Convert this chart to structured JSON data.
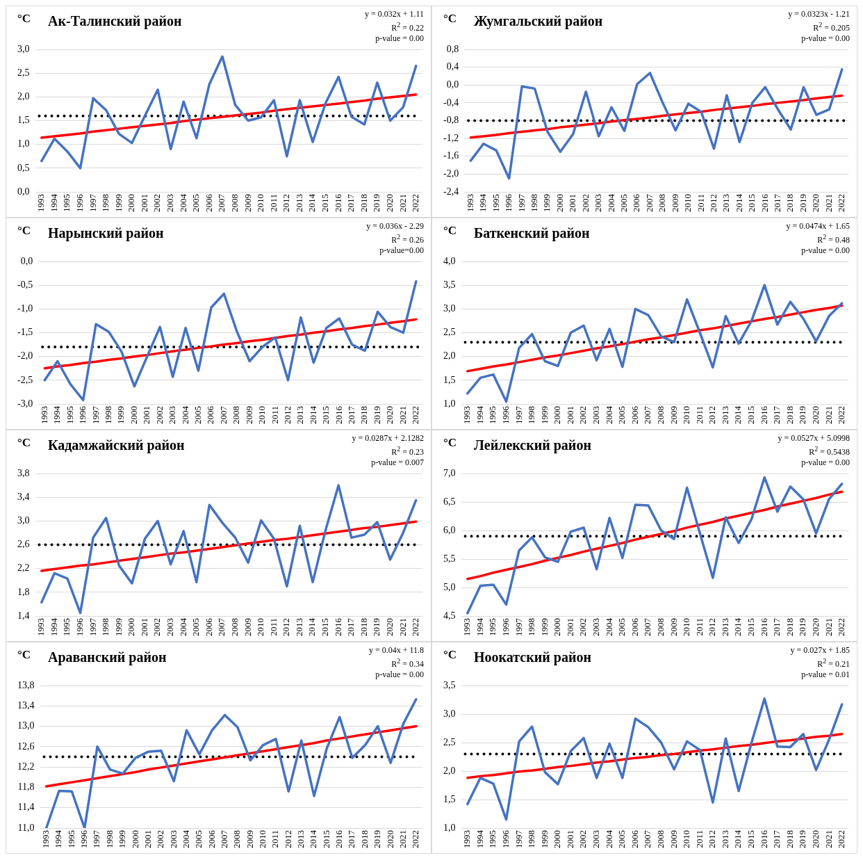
{
  "chart_data": [
    {
      "type": "line",
      "title": "Ак-Талинский район",
      "ylabel": "°C",
      "annotations": [
        "y = 0.032x + 1.11",
        "R$^{2}$ = 0.22",
        "p-value = 0.00"
      ],
      "x": [
        1993,
        1994,
        1995,
        1996,
        1997,
        1998,
        1999,
        2000,
        2001,
        2002,
        2003,
        2004,
        2005,
        2006,
        2007,
        2008,
        2009,
        2010,
        2011,
        2012,
        2013,
        2014,
        2015,
        2016,
        2017,
        2018,
        2019,
        2020,
        2021,
        2022
      ],
      "xlim": [
        1992.5,
        2022.5
      ],
      "xticks": [
        1993,
        1994,
        1995,
        1996,
        1997,
        1998,
        1999,
        2000,
        2001,
        2002,
        2003,
        2004,
        2005,
        2006,
        2007,
        2008,
        2009,
        2010,
        2011,
        2012,
        2013,
        2014,
        2015,
        2016,
        2017,
        2018,
        2019,
        2020,
        2021,
        2022
      ],
      "ylim": [
        0,
        3
      ],
      "yticks": [
        {
          "value": 0,
          "label": "0,0"
        },
        {
          "value": 0.5,
          "label": "0,5"
        },
        {
          "value": 1,
          "label": "1,0"
        },
        {
          "value": 1.5,
          "label": "1,5"
        },
        {
          "value": 2,
          "label": "2,0"
        },
        {
          "value": 2.5,
          "label": "2,5"
        },
        {
          "value": 3,
          "label": "3,0"
        }
      ],
      "grid": "y",
      "legend": false,
      "marker": "none",
      "line_style": "solid",
      "series": [
        {
          "color": "#4472c4",
          "values": [
            0.65,
            1.12,
            0.85,
            0.5,
            1.97,
            1.72,
            1.22,
            1.03,
            1.6,
            2.15,
            0.9,
            1.9,
            1.13,
            2.27,
            2.85,
            1.83,
            1.5,
            1.57,
            1.93,
            0.75,
            1.93,
            1.05,
            1.87,
            2.42,
            1.58,
            1.42,
            2.3,
            1.5,
            1.78,
            2.65
          ]
        },
        {
          "type": "line",
          "color": "#ff0000",
          "values": [
            1.14,
            1.17,
            1.2,
            1.23,
            1.27,
            1.3,
            1.33,
            1.36,
            1.39,
            1.42,
            1.45,
            1.49,
            1.52,
            1.55,
            1.58,
            1.61,
            1.64,
            1.67,
            1.71,
            1.74,
            1.77,
            1.8,
            1.83,
            1.86,
            1.89,
            1.92,
            1.96,
            1.99,
            2.02,
            2.05
          ]
        }
      ],
      "ref_lines": [
        {
          "axis": "y",
          "value": 1.6,
          "color": "#000000",
          "line_style": "dotted"
        }
      ]
    },
    {
      "type": "line",
      "title": "Жумгальский район",
      "ylabel": "°C",
      "annotations": [
        "y = 0.0323x - 1.21",
        "R$^{2}$ = 0.205",
        "p-value = 0.00"
      ],
      "x": [
        1993,
        1994,
        1995,
        1996,
        1997,
        1998,
        1999,
        2000,
        2001,
        2002,
        2003,
        2004,
        2005,
        2006,
        2007,
        2008,
        2009,
        2010,
        2011,
        2012,
        2013,
        2014,
        2015,
        2016,
        2017,
        2018,
        2019,
        2020,
        2021,
        2022
      ],
      "xlim": [
        1992.5,
        2022.5
      ],
      "xticks": [
        1993,
        1994,
        1995,
        1996,
        1997,
        1998,
        1999,
        2000,
        2001,
        2002,
        2003,
        2004,
        2005,
        2006,
        2007,
        2008,
        2009,
        2010,
        2011,
        2012,
        2013,
        2014,
        2015,
        2016,
        2017,
        2018,
        2019,
        2020,
        2021,
        2022
      ],
      "ylim": [
        -2.4,
        0.8
      ],
      "yticks": [
        {
          "value": -2.4,
          "label": "-2,4"
        },
        {
          "value": -2,
          "label": "-2,0"
        },
        {
          "value": -1.6,
          "label": "-1,6"
        },
        {
          "value": -1.2,
          "label": "-1,2"
        },
        {
          "value": -0.8,
          "label": "-0,8"
        },
        {
          "value": -0.4,
          "label": "-0,4"
        },
        {
          "value": 0,
          "label": "0,0"
        },
        {
          "value": 0.4,
          "label": "0,4"
        },
        {
          "value": 0.8,
          "label": "0,8"
        }
      ],
      "grid": "y",
      "legend": false,
      "marker": "none",
      "line_style": "solid",
      "series": [
        {
          "color": "#4472c4",
          "values": [
            -1.7,
            -1.32,
            -1.47,
            -2.1,
            -0.03,
            -0.08,
            -1.05,
            -1.5,
            -1.1,
            -0.15,
            -1.15,
            -0.5,
            -1.03,
            0.02,
            0.27,
            -0.4,
            -1.02,
            -0.42,
            -0.6,
            -1.43,
            -0.23,
            -1.28,
            -0.4,
            -0.05,
            -0.55,
            -1.0,
            -0.05,
            -0.67,
            -0.55,
            0.35
          ]
        },
        {
          "type": "line",
          "color": "#ff0000",
          "values": [
            -1.18,
            -1.15,
            -1.12,
            -1.08,
            -1.05,
            -1.02,
            -0.99,
            -0.95,
            -0.92,
            -0.89,
            -0.86,
            -0.82,
            -0.79,
            -0.76,
            -0.73,
            -0.69,
            -0.66,
            -0.63,
            -0.6,
            -0.56,
            -0.53,
            -0.5,
            -0.47,
            -0.43,
            -0.4,
            -0.37,
            -0.34,
            -0.3,
            -0.27,
            -0.24
          ]
        }
      ],
      "ref_lines": [
        {
          "axis": "y",
          "value": -0.8,
          "color": "#000000",
          "line_style": "dotted"
        }
      ]
    },
    {
      "type": "line",
      "title": "Нарынский район",
      "ylabel": "°C",
      "annotations": [
        "y = 0.036x - 2.29",
        "R$^{2}$ = 0.26",
        "p-value=0.00"
      ],
      "x": [
        1993,
        1994,
        1995,
        1996,
        1997,
        1998,
        1999,
        2000,
        2001,
        2002,
        2003,
        2004,
        2005,
        2006,
        2007,
        2008,
        2009,
        2010,
        2011,
        2012,
        2013,
        2014,
        2015,
        2016,
        2017,
        2018,
        2019,
        2020,
        2021,
        2022
      ],
      "xlim": [
        1992.5,
        2022.5
      ],
      "xticks": [
        1993,
        1994,
        1995,
        1996,
        1997,
        1998,
        1999,
        2000,
        2001,
        2002,
        2003,
        2004,
        2005,
        2006,
        2007,
        2008,
        2009,
        2010,
        2011,
        2012,
        2013,
        2014,
        2015,
        2016,
        2017,
        2018,
        2019,
        2020,
        2021,
        2022
      ],
      "ylim": [
        -3,
        0
      ],
      "yticks": [
        {
          "value": -3,
          "label": "-3,0"
        },
        {
          "value": -2.5,
          "label": "-2,5"
        },
        {
          "value": -2,
          "label": "-2,0"
        },
        {
          "value": -1.5,
          "label": "-1,5"
        },
        {
          "value": -1,
          "label": "-1,0"
        },
        {
          "value": -0.5,
          "label": "-0,5"
        },
        {
          "value": 0,
          "label": "0,0"
        }
      ],
      "grid": "y",
      "legend": false,
      "marker": "none",
      "line_style": "solid",
      "series": [
        {
          "color": "#4472c4",
          "values": [
            -2.5,
            -2.1,
            -2.58,
            -2.92,
            -1.32,
            -1.48,
            -1.9,
            -2.63,
            -2.0,
            -1.38,
            -2.43,
            -1.4,
            -2.3,
            -0.97,
            -0.68,
            -1.47,
            -2.1,
            -1.8,
            -1.6,
            -2.5,
            -1.18,
            -2.13,
            -1.4,
            -1.2,
            -1.75,
            -1.88,
            -1.06,
            -1.38,
            -1.5,
            -0.42
          ]
        },
        {
          "type": "line",
          "color": "#ff0000",
          "values": [
            -2.25,
            -2.21,
            -2.18,
            -2.14,
            -2.11,
            -2.07,
            -2.04,
            -2.0,
            -1.97,
            -1.93,
            -1.89,
            -1.86,
            -1.82,
            -1.79,
            -1.75,
            -1.72,
            -1.68,
            -1.65,
            -1.61,
            -1.57,
            -1.54,
            -1.5,
            -1.47,
            -1.43,
            -1.4,
            -1.36,
            -1.33,
            -1.29,
            -1.26,
            -1.22
          ]
        }
      ],
      "ref_lines": [
        {
          "axis": "y",
          "value": -1.8,
          "color": "#000000",
          "line_style": "dotted"
        }
      ]
    },
    {
      "type": "line",
      "title": "Баткенский район",
      "ylabel": "°C",
      "annotations": [
        "y = 0.0474x + 1.65",
        "R$^{2}$ = 0.48",
        "p-value = 0.00"
      ],
      "x": [
        1993,
        1994,
        1995,
        1996,
        1997,
        1998,
        1999,
        2000,
        2001,
        2002,
        2003,
        2004,
        2005,
        2006,
        2007,
        2008,
        2009,
        2010,
        2011,
        2012,
        2013,
        2014,
        2015,
        2016,
        2017,
        2018,
        2019,
        2020,
        2021,
        2022
      ],
      "xlim": [
        1992.5,
        2022.5
      ],
      "xticks": [
        1993,
        1994,
        1995,
        1996,
        1997,
        1998,
        1999,
        2000,
        2001,
        2002,
        2003,
        2004,
        2005,
        2006,
        2007,
        2008,
        2009,
        2010,
        2011,
        2012,
        2013,
        2014,
        2015,
        2016,
        2017,
        2018,
        2019,
        2020,
        2021,
        2022
      ],
      "ylim": [
        1,
        4
      ],
      "yticks": [
        {
          "value": 1,
          "label": "1,0"
        },
        {
          "value": 1.5,
          "label": "1,5"
        },
        {
          "value": 2,
          "label": "2,0"
        },
        {
          "value": 2.5,
          "label": "2,5"
        },
        {
          "value": 3,
          "label": "3,0"
        },
        {
          "value": 3.5,
          "label": "3,5"
        },
        {
          "value": 4,
          "label": "4,0"
        }
      ],
      "grid": "y",
      "legend": false,
      "marker": "none",
      "line_style": "solid",
      "series": [
        {
          "color": "#4472c4",
          "values": [
            1.22,
            1.55,
            1.62,
            1.05,
            2.18,
            2.47,
            1.9,
            1.8,
            2.5,
            2.65,
            1.92,
            2.58,
            1.78,
            3.0,
            2.87,
            2.42,
            2.3,
            3.2,
            2.5,
            1.77,
            2.85,
            2.27,
            2.75,
            3.5,
            2.67,
            3.15,
            2.8,
            2.32,
            2.85,
            3.12
          ]
        },
        {
          "type": "line",
          "color": "#ff0000",
          "values": [
            1.69,
            1.74,
            1.79,
            1.83,
            1.88,
            1.93,
            1.98,
            2.02,
            2.07,
            2.12,
            2.17,
            2.21,
            2.26,
            2.31,
            2.36,
            2.4,
            2.45,
            2.5,
            2.55,
            2.59,
            2.64,
            2.69,
            2.74,
            2.79,
            2.83,
            2.88,
            2.93,
            2.98,
            3.02,
            3.07
          ]
        }
      ],
      "ref_lines": [
        {
          "axis": "y",
          "value": 2.3,
          "color": "#000000",
          "line_style": "dotted"
        }
      ]
    },
    {
      "type": "line",
      "title": "Кадамжайский район",
      "ylabel": "°C",
      "annotations": [
        "y = 0.0287x + 2.1282",
        "R$^{2}$ = 0.23",
        "p-value = 0.007"
      ],
      "x": [
        1993,
        1994,
        1995,
        1996,
        1997,
        1998,
        1999,
        2000,
        2001,
        2002,
        2003,
        2004,
        2005,
        2006,
        2007,
        2008,
        2009,
        2010,
        2011,
        2012,
        2013,
        2014,
        2015,
        2016,
        2017,
        2018,
        2019,
        2020,
        2021,
        2022
      ],
      "xlim": [
        1992.5,
        2022.5
      ],
      "xticks": [
        1993,
        1994,
        1995,
        1996,
        1997,
        1998,
        1999,
        2000,
        2001,
        2002,
        2003,
        2004,
        2005,
        2006,
        2007,
        2008,
        2009,
        2010,
        2011,
        2012,
        2013,
        2014,
        2015,
        2016,
        2017,
        2018,
        2019,
        2020,
        2021,
        2022
      ],
      "ylim": [
        1.4,
        3.8
      ],
      "yticks": [
        {
          "value": 1.4,
          "label": "1,4"
        },
        {
          "value": 1.8,
          "label": "1,8"
        },
        {
          "value": 2.2,
          "label": "2,2"
        },
        {
          "value": 2.6,
          "label": "2,6"
        },
        {
          "value": 3,
          "label": "3,0"
        },
        {
          "value": 3.4,
          "label": "3,4"
        },
        {
          "value": 3.8,
          "label": "3,8"
        }
      ],
      "grid": "y",
      "legend": false,
      "marker": "none",
      "line_style": "solid",
      "series": [
        {
          "color": "#4472c4",
          "values": [
            1.63,
            2.12,
            2.03,
            1.45,
            2.72,
            3.05,
            2.25,
            1.95,
            2.7,
            3.0,
            2.27,
            2.83,
            1.97,
            3.27,
            2.97,
            2.72,
            2.3,
            3.01,
            2.7,
            1.9,
            2.92,
            1.97,
            2.85,
            3.6,
            2.72,
            2.77,
            2.98,
            2.35,
            2.8,
            3.35
          ]
        },
        {
          "type": "line",
          "color": "#ff0000",
          "values": [
            2.16,
            2.19,
            2.22,
            2.25,
            2.27,
            2.3,
            2.33,
            2.36,
            2.39,
            2.42,
            2.45,
            2.47,
            2.5,
            2.53,
            2.56,
            2.59,
            2.62,
            2.65,
            2.68,
            2.7,
            2.73,
            2.76,
            2.79,
            2.82,
            2.85,
            2.88,
            2.9,
            2.93,
            2.96,
            2.99
          ]
        }
      ],
      "ref_lines": [
        {
          "axis": "y",
          "value": 2.6,
          "color": "#000000",
          "line_style": "dotted"
        }
      ]
    },
    {
      "type": "line",
      "title": "Лейлекский район",
      "ylabel": "°C",
      "annotations": [
        "y = 0.0527x + 5.0998",
        "R$^{2}$ = 0.5438",
        "p-value = 0.00"
      ],
      "x": [
        1993,
        1994,
        1995,
        1996,
        1997,
        1998,
        1999,
        2000,
        2001,
        2002,
        2003,
        2004,
        2005,
        2006,
        2007,
        2008,
        2009,
        2010,
        2011,
        2012,
        2013,
        2014,
        2015,
        2016,
        2017,
        2018,
        2019,
        2020,
        2021,
        2022
      ],
      "xlim": [
        1992.5,
        2022.5
      ],
      "xticks": [
        1993,
        1994,
        1995,
        1996,
        1997,
        1998,
        1999,
        2000,
        2001,
        2002,
        2003,
        2004,
        2005,
        2006,
        2007,
        2008,
        2009,
        2010,
        2011,
        2012,
        2013,
        2014,
        2015,
        2016,
        2017,
        2018,
        2019,
        2020,
        2021,
        2022
      ],
      "ylim": [
        4.5,
        7
      ],
      "yticks": [
        {
          "value": 4.5,
          "label": "4,5"
        },
        {
          "value": 5,
          "label": "5,0"
        },
        {
          "value": 5.5,
          "label": "5,5"
        },
        {
          "value": 6,
          "label": "6,0"
        },
        {
          "value": 6.5,
          "label": "6,5"
        },
        {
          "value": 7,
          "label": "7,0"
        }
      ],
      "grid": "y",
      "legend": false,
      "marker": "none",
      "line_style": "solid",
      "series": [
        {
          "color": "#4472c4",
          "values": [
            4.55,
            5.03,
            5.05,
            4.7,
            5.65,
            5.88,
            5.53,
            5.45,
            5.98,
            6.05,
            5.32,
            6.22,
            5.52,
            6.45,
            6.44,
            6.0,
            5.85,
            6.75,
            5.95,
            5.17,
            6.23,
            5.78,
            6.2,
            6.93,
            6.33,
            6.77,
            6.55,
            5.95,
            6.55,
            6.82
          ]
        },
        {
          "type": "line",
          "color": "#ff0000",
          "values": [
            5.15,
            5.2,
            5.26,
            5.31,
            5.36,
            5.41,
            5.47,
            5.52,
            5.57,
            5.63,
            5.68,
            5.73,
            5.78,
            5.84,
            5.89,
            5.94,
            5.99,
            6.05,
            6.1,
            6.15,
            6.21,
            6.26,
            6.31,
            6.36,
            6.42,
            6.47,
            6.52,
            6.57,
            6.63,
            6.68
          ]
        }
      ],
      "ref_lines": [
        {
          "axis": "y",
          "value": 5.9,
          "color": "#000000",
          "line_style": "dotted"
        }
      ]
    },
    {
      "type": "line",
      "title": "Араванский район",
      "ylabel": "°C",
      "annotations": [
        "y = 0.04x + 11.8",
        "R$^{2}$ = 0.34",
        "p-value = 0.00"
      ],
      "x": [
        1993,
        1994,
        1995,
        1996,
        1997,
        1998,
        1999,
        2000,
        2001,
        2002,
        2003,
        2004,
        2005,
        2006,
        2007,
        2008,
        2009,
        2010,
        2011,
        2012,
        2013,
        2014,
        2015,
        2016,
        2017,
        2018,
        2019,
        2020,
        2021,
        2022
      ],
      "xlim": [
        1992.5,
        2022.5
      ],
      "xticks": [
        1993,
        1994,
        1995,
        1996,
        1997,
        1998,
        1999,
        2000,
        2001,
        2002,
        2003,
        2004,
        2005,
        2006,
        2007,
        2008,
        2009,
        2010,
        2011,
        2012,
        2013,
        2014,
        2015,
        2016,
        2017,
        2018,
        2019,
        2020,
        2021,
        2022
      ],
      "ylim": [
        11,
        13.8
      ],
      "yticks": [
        {
          "value": 11,
          "label": "11,0"
        },
        {
          "value": 11.4,
          "label": "11,4"
        },
        {
          "value": 11.8,
          "label": "11,8"
        },
        {
          "value": 12.2,
          "label": "12,2"
        },
        {
          "value": 12.6,
          "label": "12,6"
        },
        {
          "value": 13,
          "label": "13,0"
        },
        {
          "value": 13.4,
          "label": "13,4"
        },
        {
          "value": 13.8,
          "label": "13,8"
        }
      ],
      "grid": "y",
      "legend": false,
      "marker": "none",
      "line_style": "solid",
      "series": [
        {
          "color": "#4472c4",
          "values": [
            11.0,
            11.73,
            11.72,
            11.0,
            12.6,
            12.15,
            12.07,
            12.38,
            12.5,
            12.52,
            11.92,
            12.92,
            12.45,
            12.92,
            13.22,
            12.98,
            12.33,
            12.63,
            12.75,
            11.72,
            12.72,
            11.63,
            12.57,
            13.18,
            12.38,
            12.63,
            13.0,
            12.28,
            13.05,
            13.53
          ]
        },
        {
          "type": "line",
          "color": "#ff0000",
          "values": [
            11.82,
            11.86,
            11.9,
            11.94,
            11.98,
            12.02,
            12.06,
            12.1,
            12.15,
            12.19,
            12.23,
            12.27,
            12.31,
            12.35,
            12.39,
            12.43,
            12.47,
            12.51,
            12.55,
            12.59,
            12.63,
            12.67,
            12.72,
            12.76,
            12.8,
            12.84,
            12.88,
            12.92,
            12.96,
            13.0
          ]
        }
      ],
      "ref_lines": [
        {
          "axis": "y",
          "value": 12.4,
          "color": "#000000",
          "line_style": "dotted"
        }
      ]
    },
    {
      "type": "line",
      "title": "Ноокатский район",
      "ylabel": "°C",
      "annotations": [
        "y = 0.027x + 1.85",
        "R$^{2}$ = 0.21",
        "p-value = 0.01"
      ],
      "x": [
        1993,
        1994,
        1995,
        1996,
        1997,
        1998,
        1999,
        2000,
        2001,
        2002,
        2003,
        2004,
        2005,
        2006,
        2007,
        2008,
        2009,
        2010,
        2011,
        2012,
        2013,
        2014,
        2015,
        2016,
        2017,
        2018,
        2019,
        2020,
        2021,
        2022
      ],
      "xlim": [
        1992.5,
        2022.5
      ],
      "xticks": [
        1993,
        1994,
        1995,
        1996,
        1997,
        1998,
        1999,
        2000,
        2001,
        2002,
        2003,
        2004,
        2005,
        2006,
        2007,
        2008,
        2009,
        2010,
        2011,
        2012,
        2013,
        2014,
        2015,
        2016,
        2017,
        2018,
        2019,
        2020,
        2021,
        2022
      ],
      "ylim": [
        1,
        3.5
      ],
      "yticks": [
        {
          "value": 1,
          "label": "1,0"
        },
        {
          "value": 1.5,
          "label": "1,5"
        },
        {
          "value": 2,
          "label": "2,0"
        },
        {
          "value": 2.5,
          "label": "2,5"
        },
        {
          "value": 3,
          "label": "3,0"
        },
        {
          "value": 3.5,
          "label": "3,5"
        }
      ],
      "grid": "y",
      "legend": false,
      "marker": "none",
      "line_style": "solid",
      "series": [
        {
          "color": "#4472c4",
          "values": [
            1.42,
            1.88,
            1.78,
            1.15,
            2.52,
            2.78,
            1.98,
            1.77,
            2.35,
            2.58,
            1.88,
            2.48,
            1.88,
            2.92,
            2.77,
            2.5,
            2.03,
            2.52,
            2.37,
            1.45,
            2.57,
            1.65,
            2.5,
            3.27,
            2.43,
            2.42,
            2.65,
            2.02,
            2.55,
            3.17
          ]
        },
        {
          "type": "line",
          "color": "#ff0000",
          "values": [
            1.88,
            1.91,
            1.93,
            1.96,
            1.99,
            2.01,
            2.04,
            2.07,
            2.09,
            2.12,
            2.15,
            2.17,
            2.2,
            2.23,
            2.25,
            2.28,
            2.3,
            2.33,
            2.36,
            2.38,
            2.41,
            2.44,
            2.46,
            2.49,
            2.52,
            2.54,
            2.57,
            2.6,
            2.62,
            2.65
          ]
        }
      ],
      "ref_lines": [
        {
          "axis": "y",
          "value": 2.3,
          "color": "#000000",
          "line_style": "dotted"
        }
      ]
    }
  ]
}
